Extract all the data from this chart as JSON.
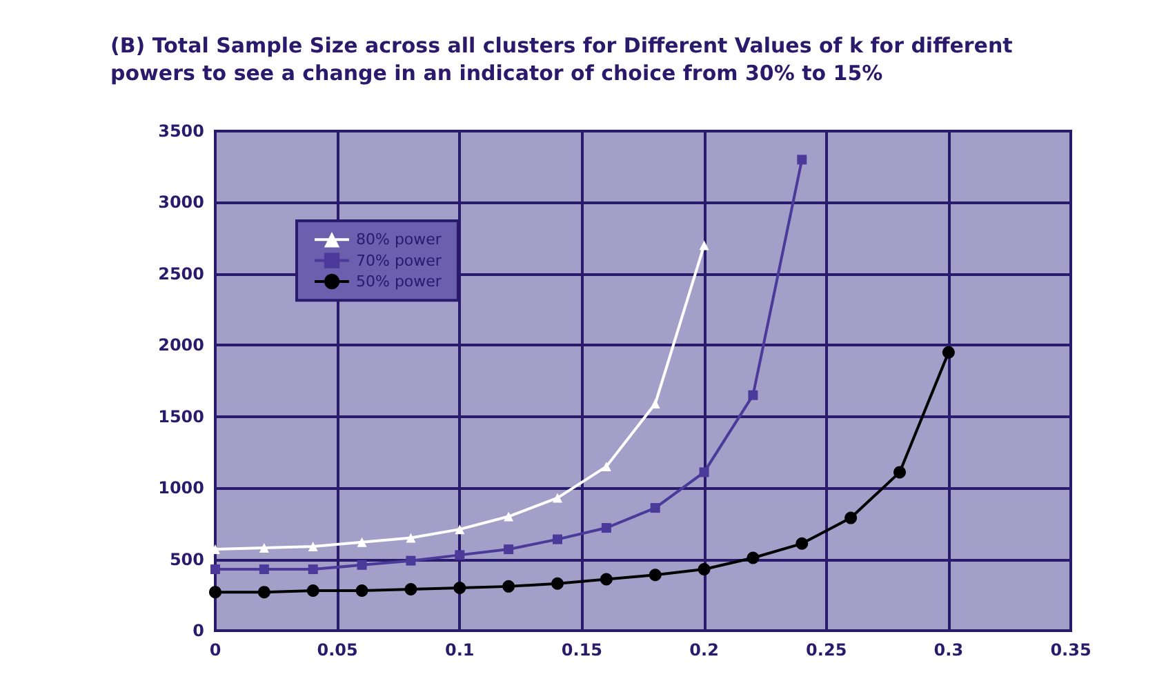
{
  "chart_data": {
    "type": "line",
    "title": "(B) Total Sample Size across all clusters for Different Values of k for different powers to see a change in an indicator of choice from 30% to 15%",
    "xlim": [
      0,
      0.35
    ],
    "xticks": [
      0,
      0.05,
      0.1,
      0.15,
      0.2,
      0.25,
      0.3,
      0.35
    ],
    "ylim": [
      0,
      3500
    ],
    "yticks": [
      0,
      500,
      1000,
      1500,
      2000,
      2500,
      3000,
      3500
    ],
    "grid": true,
    "legend": "top left",
    "series": [
      {
        "name": "80% power",
        "color": "#ffffff",
        "marker": "triangle",
        "x": [
          0,
          0.02,
          0.04,
          0.06,
          0.08,
          0.1,
          0.12,
          0.14,
          0.16,
          0.18,
          0.2
        ],
        "values": [
          570,
          580,
          590,
          620,
          650,
          710,
          800,
          930,
          1150,
          1590,
          2700
        ]
      },
      {
        "name": "70% power",
        "color": "#4b3a9a",
        "marker": "square",
        "x": [
          0,
          0.02,
          0.04,
          0.06,
          0.08,
          0.1,
          0.12,
          0.14,
          0.16,
          0.18,
          0.2,
          0.22,
          0.24
        ],
        "values": [
          430,
          430,
          430,
          460,
          490,
          530,
          570,
          640,
          720,
          860,
          1110,
          1650,
          3300
        ]
      },
      {
        "name": "50% power",
        "color": "#000000",
        "marker": "circle",
        "x": [
          0,
          0.02,
          0.04,
          0.06,
          0.08,
          0.1,
          0.12,
          0.14,
          0.16,
          0.18,
          0.2,
          0.22,
          0.24,
          0.26,
          0.28,
          0.3
        ],
        "values": [
          270,
          270,
          280,
          280,
          290,
          300,
          310,
          330,
          360,
          390,
          430,
          510,
          610,
          790,
          1110,
          1950
        ]
      }
    ]
  }
}
